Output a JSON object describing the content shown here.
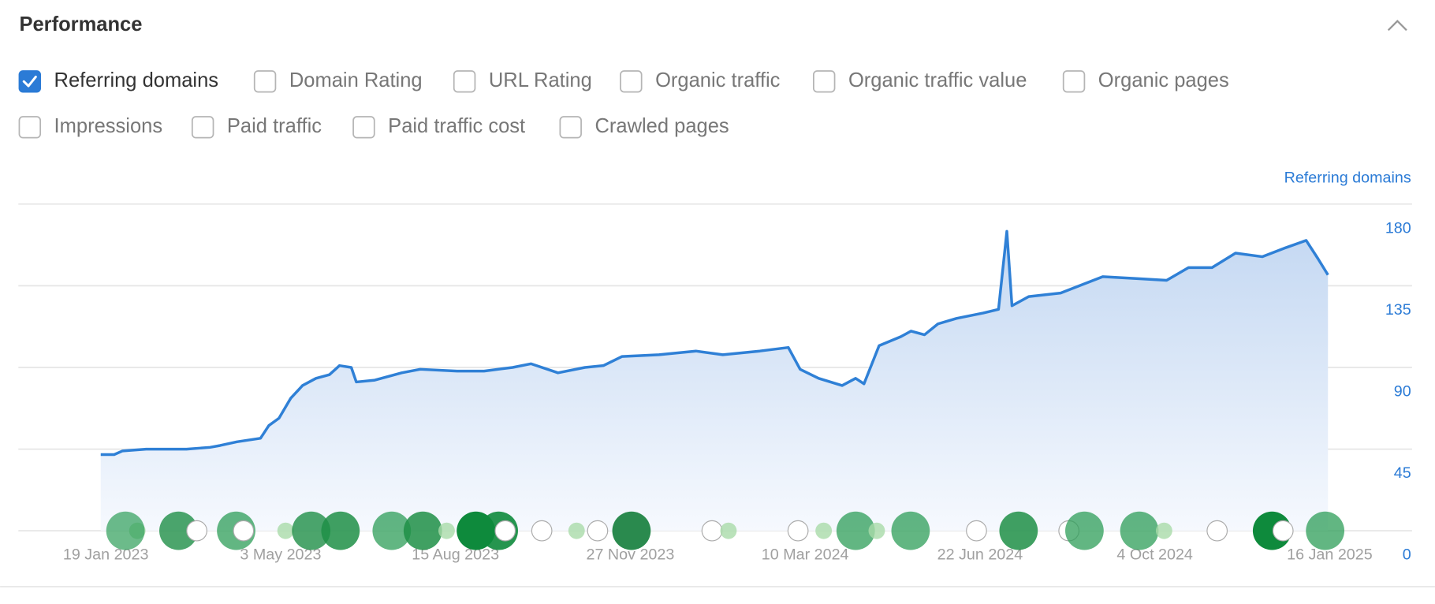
{
  "header": {
    "title": "Performance"
  },
  "checkboxes": [
    {
      "label": "Referring domains",
      "checked": true
    },
    {
      "label": "Domain Rating",
      "checked": false
    },
    {
      "label": "URL Rating",
      "checked": false
    },
    {
      "label": "Organic traffic",
      "checked": false
    },
    {
      "label": "Organic traffic value",
      "checked": false
    },
    {
      "label": "Organic pages",
      "checked": false
    },
    {
      "label": "Impressions",
      "checked": false
    },
    {
      "label": "Paid traffic",
      "checked": false
    },
    {
      "label": "Paid traffic cost",
      "checked": false
    },
    {
      "label": "Crawled pages",
      "checked": false
    }
  ],
  "chart_data": {
    "type": "line",
    "ylabel": "Referring domains",
    "color": "#2f80d6",
    "area": true,
    "grid": true,
    "x": [
      "2023-01-16",
      "2023-01-24",
      "2023-01-29",
      "2023-02-12",
      "2023-03-08",
      "2023-03-22",
      "2023-03-28",
      "2023-04-07",
      "2023-04-21",
      "2023-04-26",
      "2023-05-02",
      "2023-05-09",
      "2023-05-16",
      "2023-05-24",
      "2023-06-01",
      "2023-06-07",
      "2023-06-14",
      "2023-06-17",
      "2023-06-28",
      "2023-07-14",
      "2023-07-25",
      "2023-08-16",
      "2023-09-01",
      "2023-09-18",
      "2023-09-29",
      "2023-10-15",
      "2023-10-31",
      "2023-11-11",
      "2023-11-22",
      "2023-12-14",
      "2024-01-05",
      "2024-01-21",
      "2024-02-12",
      "2024-02-29",
      "2024-03-07",
      "2024-03-18",
      "2024-04-01",
      "2024-04-09",
      "2024-04-14",
      "2024-04-23",
      "2024-05-06",
      "2024-05-12",
      "2024-05-20",
      "2024-05-28",
      "2024-06-08",
      "2024-06-24",
      "2024-07-03",
      "2024-07-08",
      "2024-07-11",
      "2024-07-21",
      "2024-08-09",
      "2024-08-20",
      "2024-09-03",
      "2024-09-22",
      "2024-10-11",
      "2024-10-24",
      "2024-11-07",
      "2024-11-21",
      "2024-12-07",
      "2024-12-21",
      "2025-01-02",
      "2025-01-09",
      "2025-01-15"
    ],
    "values": [
      42,
      42,
      44,
      45,
      45,
      46,
      47,
      49,
      51,
      58,
      62,
      73,
      80,
      84,
      86,
      91,
      90,
      82,
      83,
      87,
      89,
      88,
      88,
      90,
      92,
      87,
      90,
      91,
      96,
      97,
      99,
      97,
      99,
      101,
      89,
      84,
      80,
      84,
      81,
      102,
      107,
      110,
      108,
      114,
      117,
      120,
      122,
      165,
      124,
      129,
      131,
      135,
      140,
      139,
      138,
      145,
      145,
      153,
      151,
      156,
      160,
      150,
      141
    ],
    "xlim": [
      "2022-11-28",
      "2025-03-06"
    ],
    "xticks": [
      {
        "value": "2023-01-19",
        "label": "19 Jan 2023"
      },
      {
        "value": "2023-05-03",
        "label": "3 May 2023"
      },
      {
        "value": "2023-08-15",
        "label": "15 Aug 2023"
      },
      {
        "value": "2023-11-27",
        "label": "27 Nov 2023"
      },
      {
        "value": "2024-03-10",
        "label": "10 Mar 2024"
      },
      {
        "value": "2024-06-22",
        "label": "22 Jun 2024"
      },
      {
        "value": "2024-10-04",
        "label": "4 Oct 2024"
      },
      {
        "value": "2025-01-16",
        "label": "16 Jan 2025"
      }
    ],
    "ylim": [
      0,
      180
    ],
    "yticks": [
      0,
      45,
      90,
      135,
      180
    ]
  }
}
